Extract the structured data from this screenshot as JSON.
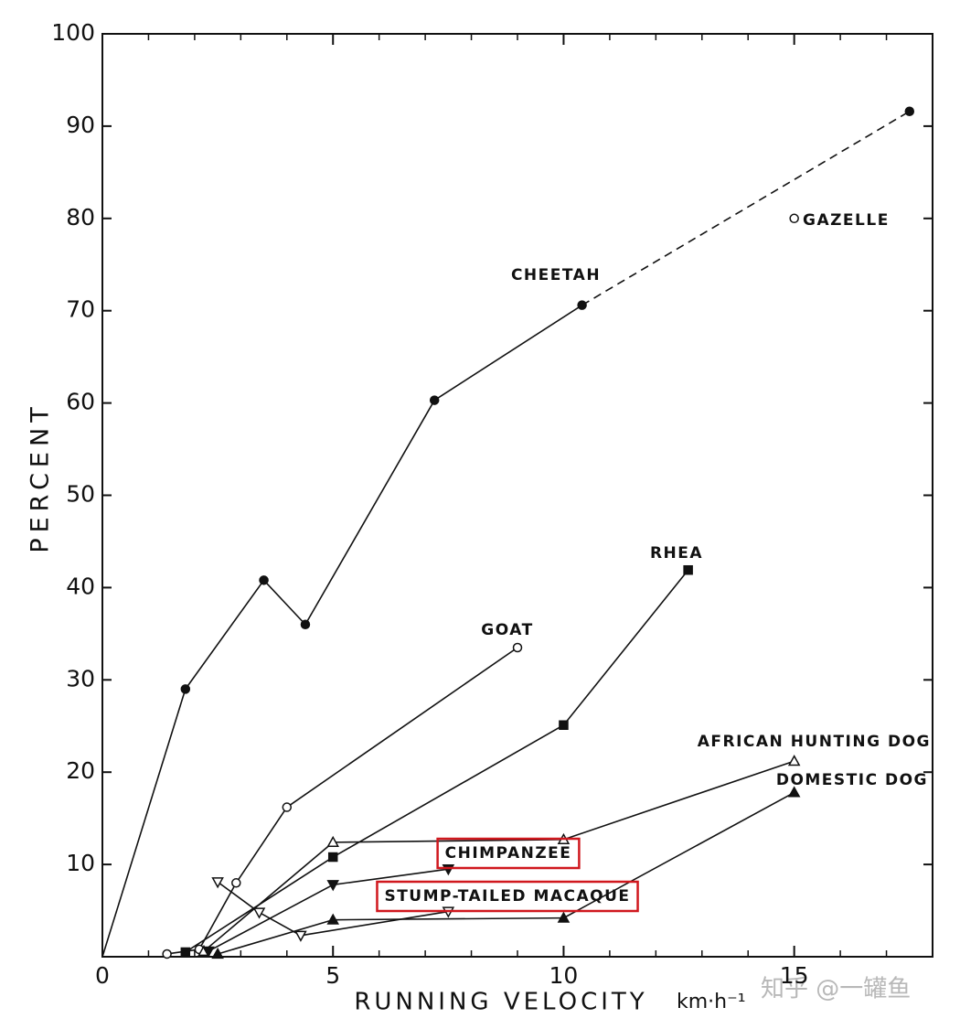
{
  "chart_data": {
    "type": "line",
    "ylabel": "PERCENT",
    "xlabel": "RUNNING VELOCITY",
    "x_unit": "km·h⁻¹",
    "watermark": "知乎 @一罐鱼",
    "xlim": [
      0,
      18
    ],
    "ylim": [
      0,
      100
    ],
    "xticks": [
      0,
      5,
      10,
      15
    ],
    "x_minor_ticks": [
      1,
      2,
      3,
      4,
      6,
      7,
      8,
      9,
      11,
      12,
      13,
      14,
      16,
      17
    ],
    "yticks": [
      10,
      20,
      30,
      40,
      50,
      60,
      70,
      80,
      90,
      100
    ],
    "color": "#111111",
    "highlight_color": "#d0181e",
    "series": [
      {
        "name": "CHEETAH",
        "marker": "filled-circle",
        "x": [
          0,
          1.8,
          3.5,
          4.4,
          7.2,
          10.4,
          17.5
        ],
        "values": [
          0,
          29,
          40.8,
          36,
          60.3,
          70.6,
          91.6
        ],
        "unmarked_points": [
          0
        ],
        "line_styles": [
          "solid",
          "solid",
          "solid",
          "solid",
          "solid",
          "dashed"
        ]
      },
      {
        "name": "GAZELLE",
        "marker": "open-circle",
        "x": [
          15
        ],
        "values": [
          80
        ]
      },
      {
        "name": "RHEA",
        "marker": "filled-square",
        "x": [
          1.8,
          5,
          10,
          12.7
        ],
        "values": [
          0.5,
          10.8,
          25.1,
          41.9
        ]
      },
      {
        "name": "GOAT",
        "marker": "open-circle",
        "x": [
          1.4,
          2.1,
          2.9,
          4.0,
          9.0
        ],
        "values": [
          0.3,
          0.8,
          8,
          16.2,
          33.5
        ]
      },
      {
        "name": "AFRICAN HUNTING DOG",
        "marker": "open-triangle-up",
        "x": [
          2.2,
          5,
          10,
          15
        ],
        "values": [
          0.6,
          12.4,
          12.7,
          21.2
        ]
      },
      {
        "name": "DOMESTIC DOG",
        "marker": "filled-triangle-up",
        "x": [
          2.5,
          5,
          10,
          15
        ],
        "values": [
          0.3,
          4.0,
          4.2,
          17.8
        ]
      },
      {
        "name": "CHIMPANZEE",
        "marker": "filled-triangle-down",
        "x": [
          2.3,
          5,
          7.5
        ],
        "values": [
          0.6,
          7.8,
          9.5
        ],
        "highlighted": true
      },
      {
        "name": "STUMP-TAILED MACAQUE",
        "marker": "open-triangle-down",
        "x": [
          2.5,
          3.4,
          4.3,
          7.5
        ],
        "values": [
          8.1,
          4.8,
          2.3,
          4.9
        ],
        "highlighted": true
      }
    ]
  }
}
